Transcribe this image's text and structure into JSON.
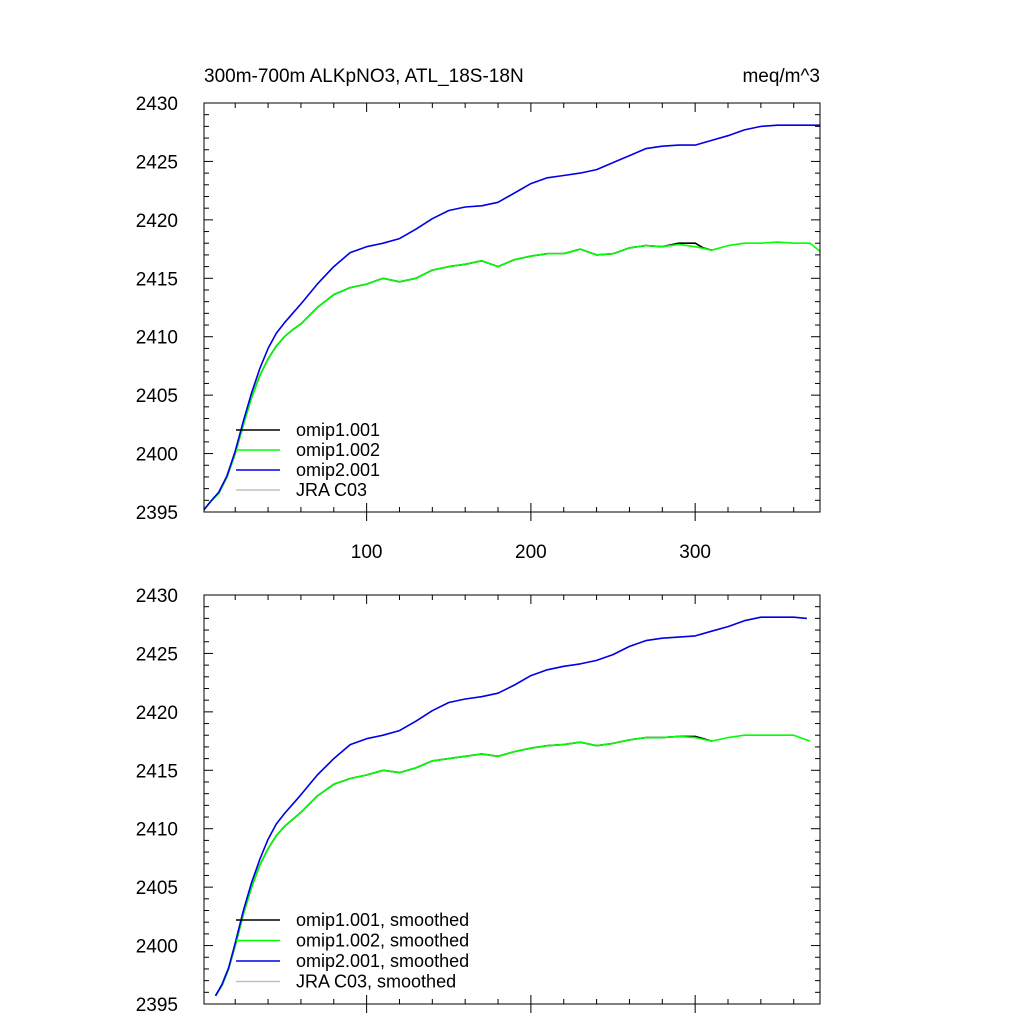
{
  "chart_data": [
    {
      "type": "line",
      "title": "300m-700m ALKpNO3, ATL_18S-18N",
      "units": "meq/m^3",
      "xlim": [
        1,
        376
      ],
      "ylim": [
        2395,
        2430
      ],
      "yticks": [
        2395,
        2400,
        2405,
        2410,
        2415,
        2420,
        2425,
        2430
      ],
      "xticks": [
        100,
        200,
        300
      ],
      "show_x_tick_labels": true,
      "legend_position": "lower-left",
      "legend": [
        "omip1.001",
        "omip1.002",
        "omip2.001",
        "JRA C03"
      ],
      "series": [
        {
          "name": "omip1.001",
          "color": "#000000",
          "x": [
            1,
            5,
            10,
            15,
            20,
            25,
            30,
            35,
            40,
            45,
            50,
            55,
            60,
            70,
            80,
            90,
            100,
            110,
            120,
            130,
            140,
            150,
            160,
            170,
            180,
            190,
            200,
            210,
            220,
            230,
            240,
            250,
            260,
            270,
            280,
            290,
            300,
            305,
            310
          ],
          "values": [
            2395.2,
            2395.9,
            2396.6,
            2398.0,
            2400.0,
            2402.5,
            2404.8,
            2406.7,
            2408.1,
            2409.2,
            2410.0,
            2410.6,
            2411.1,
            2412.5,
            2413.6,
            2414.2,
            2414.5,
            2415.0,
            2414.7,
            2415.0,
            2415.7,
            2416.0,
            2416.2,
            2416.5,
            2416.0,
            2416.6,
            2416.9,
            2417.1,
            2417.1,
            2417.5,
            2417.0,
            2417.1,
            2417.6,
            2417.8,
            2417.7,
            2418.0,
            2418.0,
            2417.6,
            2417.4
          ]
        },
        {
          "name": "omip1.002",
          "color": "#00ff00",
          "x": [
            1,
            5,
            10,
            15,
            20,
            25,
            30,
            35,
            40,
            45,
            50,
            55,
            60,
            70,
            80,
            90,
            100,
            110,
            120,
            130,
            140,
            150,
            160,
            170,
            180,
            190,
            200,
            210,
            220,
            230,
            240,
            250,
            260,
            270,
            280,
            290,
            300,
            310,
            320,
            330,
            340,
            350,
            360,
            370,
            376
          ],
          "values": [
            2395.2,
            2395.9,
            2396.6,
            2398.0,
            2400.0,
            2402.5,
            2404.8,
            2406.7,
            2408.1,
            2409.2,
            2410.0,
            2410.6,
            2411.1,
            2412.5,
            2413.6,
            2414.2,
            2414.5,
            2415.0,
            2414.7,
            2415.0,
            2415.7,
            2416.0,
            2416.2,
            2416.5,
            2416.0,
            2416.6,
            2416.9,
            2417.1,
            2417.1,
            2417.5,
            2417.0,
            2417.1,
            2417.6,
            2417.8,
            2417.7,
            2417.9,
            2417.7,
            2417.4,
            2417.8,
            2418.0,
            2418.0,
            2418.1,
            2418.0,
            2418.0,
            2417.3
          ]
        },
        {
          "name": "omip2.001",
          "color": "#0000e6",
          "x": [
            1,
            5,
            10,
            15,
            20,
            25,
            30,
            35,
            40,
            45,
            50,
            55,
            60,
            70,
            80,
            90,
            100,
            110,
            120,
            130,
            140,
            150,
            160,
            170,
            180,
            190,
            200,
            210,
            220,
            230,
            240,
            250,
            260,
            270,
            280,
            290,
            300,
            310,
            320,
            330,
            340,
            350,
            360,
            370,
            376
          ],
          "values": [
            2395.2,
            2395.9,
            2396.7,
            2398.1,
            2400.2,
            2402.8,
            2405.2,
            2407.3,
            2409.0,
            2410.3,
            2411.2,
            2412.0,
            2412.8,
            2414.5,
            2416.0,
            2417.2,
            2417.7,
            2418.0,
            2418.4,
            2419.2,
            2420.1,
            2420.8,
            2421.1,
            2421.2,
            2421.5,
            2422.3,
            2423.1,
            2423.6,
            2423.8,
            2424.0,
            2424.3,
            2424.9,
            2425.5,
            2426.1,
            2426.3,
            2426.4,
            2426.4,
            2426.8,
            2427.2,
            2427.7,
            2428.0,
            2428.1,
            2428.1,
            2428.1,
            2428.1
          ]
        },
        {
          "name": "JRA C03",
          "color": "#c0c0c0",
          "x": [],
          "values": []
        }
      ]
    },
    {
      "type": "line",
      "xlim": [
        1,
        376
      ],
      "ylim": [
        2395,
        2430
      ],
      "yticks": [
        2395,
        2400,
        2405,
        2410,
        2415,
        2420,
        2425,
        2430
      ],
      "xticks": [
        100,
        200,
        300
      ],
      "show_x_tick_labels": false,
      "legend_position": "lower-left",
      "legend": [
        "omip1.001, smoothed",
        "omip1.002, smoothed",
        "omip2.001, smoothed",
        "JRA C03, smoothed"
      ],
      "series": [
        {
          "name": "omip1.001, smoothed",
          "color": "#000000",
          "x": [
            8,
            12,
            16,
            20,
            25,
            30,
            35,
            40,
            45,
            50,
            55,
            60,
            70,
            80,
            90,
            100,
            110,
            120,
            130,
            140,
            150,
            160,
            170,
            180,
            190,
            200,
            210,
            220,
            230,
            240,
            250,
            260,
            270,
            280,
            290,
            300,
            305,
            310
          ],
          "values": [
            2395.7,
            2396.6,
            2398.0,
            2400.0,
            2402.7,
            2405.0,
            2406.9,
            2408.3,
            2409.4,
            2410.2,
            2410.8,
            2411.4,
            2412.8,
            2413.8,
            2414.3,
            2414.6,
            2415.0,
            2414.8,
            2415.2,
            2415.8,
            2416.0,
            2416.2,
            2416.4,
            2416.2,
            2416.6,
            2416.9,
            2417.1,
            2417.2,
            2417.4,
            2417.1,
            2417.3,
            2417.6,
            2417.8,
            2417.8,
            2417.9,
            2417.9,
            2417.7,
            2417.5
          ]
        },
        {
          "name": "omip1.002, smoothed",
          "color": "#00ff00",
          "x": [
            8,
            12,
            16,
            20,
            25,
            30,
            35,
            40,
            45,
            50,
            55,
            60,
            70,
            80,
            90,
            100,
            110,
            120,
            130,
            140,
            150,
            160,
            170,
            180,
            190,
            200,
            210,
            220,
            230,
            240,
            250,
            260,
            270,
            280,
            290,
            300,
            310,
            320,
            330,
            340,
            350,
            360,
            370
          ],
          "values": [
            2395.7,
            2396.6,
            2398.0,
            2400.0,
            2402.7,
            2405.0,
            2406.9,
            2408.3,
            2409.4,
            2410.2,
            2410.8,
            2411.4,
            2412.8,
            2413.8,
            2414.3,
            2414.6,
            2415.0,
            2414.8,
            2415.2,
            2415.8,
            2416.0,
            2416.2,
            2416.4,
            2416.2,
            2416.6,
            2416.9,
            2417.1,
            2417.2,
            2417.4,
            2417.1,
            2417.3,
            2417.6,
            2417.8,
            2417.8,
            2417.9,
            2417.8,
            2417.5,
            2417.8,
            2418.0,
            2418.0,
            2418.0,
            2418.0,
            2417.5
          ]
        },
        {
          "name": "omip2.001, smoothed",
          "color": "#0000e6",
          "x": [
            8,
            12,
            16,
            20,
            25,
            30,
            35,
            40,
            45,
            50,
            55,
            60,
            70,
            80,
            90,
            100,
            110,
            120,
            130,
            140,
            150,
            160,
            170,
            180,
            190,
            200,
            210,
            220,
            230,
            240,
            250,
            260,
            270,
            280,
            290,
            300,
            310,
            320,
            330,
            340,
            350,
            360,
            368
          ],
          "values": [
            2395.7,
            2396.7,
            2398.1,
            2400.2,
            2403.0,
            2405.4,
            2407.4,
            2409.1,
            2410.4,
            2411.3,
            2412.1,
            2412.9,
            2414.6,
            2416.0,
            2417.2,
            2417.7,
            2418.0,
            2418.4,
            2419.2,
            2420.1,
            2420.8,
            2421.1,
            2421.3,
            2421.6,
            2422.3,
            2423.1,
            2423.6,
            2423.9,
            2424.1,
            2424.4,
            2424.9,
            2425.6,
            2426.1,
            2426.3,
            2426.4,
            2426.5,
            2426.9,
            2427.3,
            2427.8,
            2428.1,
            2428.1,
            2428.1,
            2428.0
          ]
        },
        {
          "name": "JRA C03, smoothed",
          "color": "#c0c0c0",
          "x": [],
          "values": []
        }
      ]
    }
  ]
}
